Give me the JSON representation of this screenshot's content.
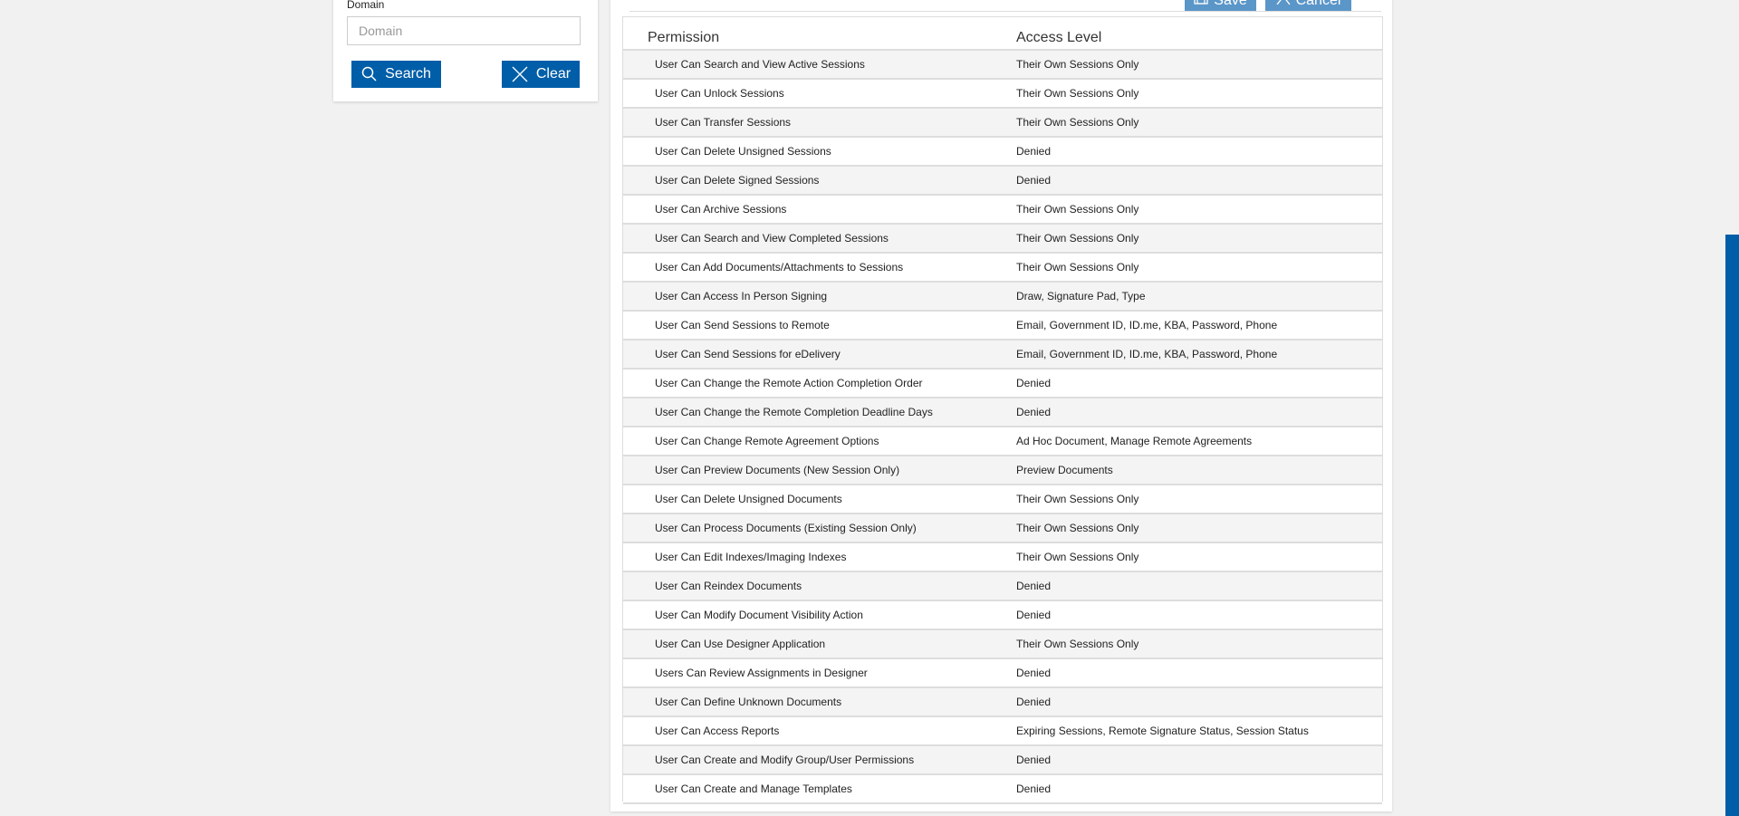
{
  "filter": {
    "domain_label": "Domain",
    "domain_placeholder": "Domain",
    "domain_value": "",
    "search_label": "Search",
    "clear_label": "Clear"
  },
  "toolbar": {
    "save_label": "Save",
    "cancel_label": "Cancel"
  },
  "table": {
    "headers": [
      "Permission",
      "Access Level"
    ],
    "rows": [
      [
        "User Can Search and View Active Sessions",
        "Their Own Sessions Only"
      ],
      [
        "User Can Unlock Sessions",
        "Their Own Sessions Only"
      ],
      [
        "User Can Transfer Sessions",
        "Their Own Sessions Only"
      ],
      [
        "User Can Delete Unsigned Sessions",
        "Denied"
      ],
      [
        "User Can Delete Signed Sessions",
        "Denied"
      ],
      [
        "User Can Archive Sessions",
        "Their Own Sessions Only"
      ],
      [
        "User Can Search and View Completed Sessions",
        "Their Own Sessions Only"
      ],
      [
        "User Can Add Documents/Attachments to Sessions",
        "Their Own Sessions Only"
      ],
      [
        "User Can Access In Person Signing",
        "Draw, Signature Pad, Type"
      ],
      [
        "User Can Send Sessions to Remote",
        "Email, Government ID, ID.me, KBA, Password, Phone"
      ],
      [
        "User Can Send Sessions for eDelivery",
        "Email, Government ID, ID.me, KBA, Password, Phone"
      ],
      [
        "User Can Change the Remote Action Completion Order",
        "Denied"
      ],
      [
        "User Can Change the Remote Completion Deadline Days",
        "Denied"
      ],
      [
        "User Can Change Remote Agreement Options",
        "Ad Hoc Document, Manage Remote Agreements"
      ],
      [
        "User Can Preview Documents (New Session Only)",
        "Preview Documents"
      ],
      [
        "User Can Delete Unsigned Documents",
        "Their Own Sessions Only"
      ],
      [
        "User Can Process Documents (Existing Session Only)",
        "Their Own Sessions Only"
      ],
      [
        "User Can Edit Indexes/Imaging Indexes",
        "Their Own Sessions Only"
      ],
      [
        "User Can Reindex Documents",
        "Denied"
      ],
      [
        "User Can Modify Document Visibility Action",
        "Denied"
      ],
      [
        "User Can Use Designer Application",
        "Their Own Sessions Only"
      ],
      [
        "Users Can Review Assignments in Designer",
        "Denied"
      ],
      [
        "User Can Define Unknown Documents",
        "Denied"
      ],
      [
        "User Can Access Reports",
        "Expiring Sessions, Remote Signature Status, Session Status"
      ],
      [
        "User Can Create and Modify Group/User Permissions",
        "Denied"
      ],
      [
        "User Can Create and Manage Templates",
        "Denied"
      ]
    ]
  },
  "colors": {
    "primary": "#005ea8",
    "toolbar_button": "#5b96c8",
    "background": "#f1f1f1"
  }
}
